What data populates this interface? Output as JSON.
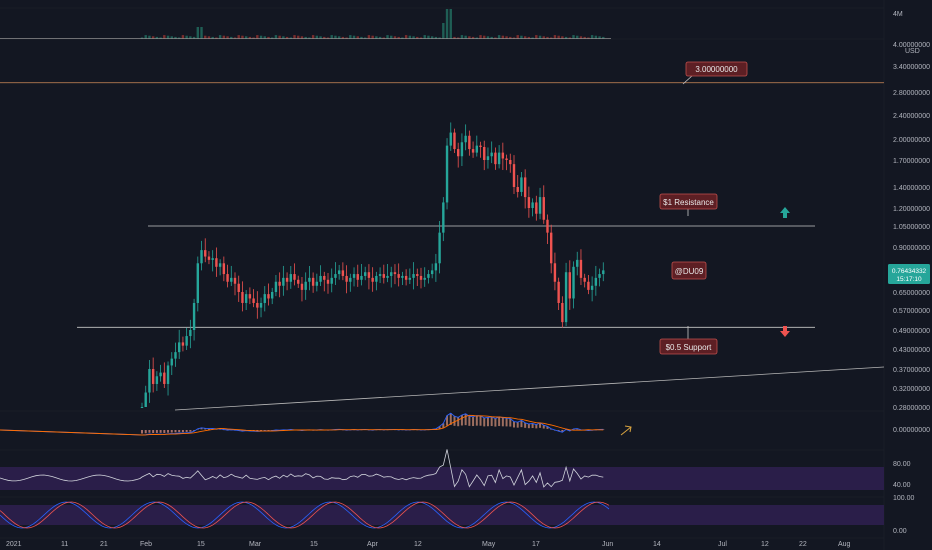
{
  "chart_data": {
    "type": "candlestick",
    "quote_currency": "USD",
    "volume_label": "4M",
    "price_axis_labels": [
      "4.00000000",
      "3.40000000",
      "2.80000000",
      "2.40000000",
      "2.00000000",
      "1.70000000",
      "1.40000000",
      "1.20000000",
      "1.05000000",
      "0.90000000",
      "0.65000000",
      "0.57000000",
      "0.49000000",
      "0.43000000",
      "0.37000000",
      "0.32000000",
      "0.28000000"
    ],
    "macd_axis_label": "0.00000000",
    "rsi_axis_labels": [
      "80.00",
      "40.00"
    ],
    "stoch_axis_labels": [
      "100.00",
      "0.00"
    ],
    "time_axis_labels": [
      "2021",
      "11",
      "21",
      "Feb",
      "15",
      "Mar",
      "15",
      "Apr",
      "12",
      "May",
      "17",
      "Jun",
      "14",
      "Jul",
      "12",
      "22",
      "Aug"
    ],
    "current_price": {
      "value": "0.76434332",
      "countdown": "15:17:10",
      "color": "#26a69a"
    },
    "levels": [
      {
        "price": 3.0,
        "color": "#d08a5a"
      },
      {
        "price": 1.05,
        "color": "#c8c8c8"
      },
      {
        "price": 0.5,
        "color": "#c8c8c8"
      }
    ],
    "callouts": {
      "target": "3.00000000",
      "resistance": "$1 Resistance",
      "author": "@DU09",
      "support": "$0.5 Support"
    },
    "colors": {
      "up": "#26a69a",
      "down": "#ef5350",
      "macd": "#2962ff",
      "signal": "#ff6d00",
      "rsi": "#d1d4dc",
      "band": "#2a1e49"
    },
    "daily_closes": [
      0.28,
      0.31,
      0.37,
      0.33,
      0.35,
      0.36,
      0.33,
      0.38,
      0.4,
      0.42,
      0.45,
      0.44,
      0.47,
      0.49,
      0.6,
      0.8,
      0.88,
      0.84,
      0.82,
      0.83,
      0.78,
      0.8,
      0.74,
      0.7,
      0.72,
      0.69,
      0.65,
      0.6,
      0.64,
      0.62,
      0.6,
      0.58,
      0.6,
      0.64,
      0.62,
      0.65,
      0.7,
      0.68,
      0.72,
      0.7,
      0.74,
      0.71,
      0.69,
      0.66,
      0.7,
      0.72,
      0.68,
      0.7,
      0.73,
      0.71,
      0.69,
      0.72,
      0.74,
      0.76,
      0.73,
      0.7,
      0.72,
      0.74,
      0.71,
      0.73,
      0.75,
      0.72,
      0.7,
      0.73,
      0.74,
      0.72,
      0.73,
      0.75,
      0.74,
      0.72,
      0.73,
      0.71,
      0.72,
      0.74,
      0.73,
      0.71,
      0.72,
      0.74,
      0.76,
      0.8,
      1.0,
      1.25,
      1.9,
      2.1,
      1.85,
      1.75,
      1.95,
      2.05,
      1.85,
      1.8,
      1.9,
      1.88,
      1.7,
      1.75,
      1.8,
      1.65,
      1.8,
      1.72,
      1.7,
      1.65,
      1.4,
      1.35,
      1.5,
      1.3,
      1.2,
      1.25,
      1.15,
      1.3,
      1.1,
      1.0,
      0.8,
      0.7,
      0.6,
      0.52,
      0.75,
      0.62,
      0.78,
      0.82,
      0.72,
      0.7,
      0.66,
      0.68,
      0.72,
      0.74,
      0.76
    ]
  }
}
